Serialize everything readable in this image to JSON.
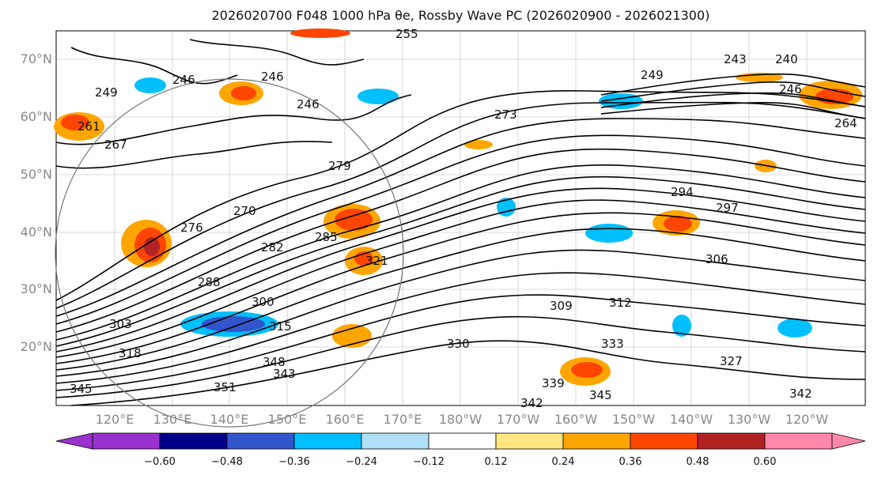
{
  "title": {
    "text": "2026020700 F048 1000 hPa θe, Rossby Wave PC (2026020900 - 2026021300)"
  },
  "map": {
    "lat_ticks": [
      "70°N",
      "60°N",
      "50°N",
      "40°N",
      "30°N",
      "20°N"
    ],
    "lon_ticks": [
      "120°E",
      "130°E",
      "140°E",
      "150°E",
      "160°E",
      "170°E",
      "180°W",
      "170°W",
      "160°W",
      "150°W",
      "140°W",
      "130°W",
      "120°W"
    ],
    "contour_labels": [
      "255",
      "246",
      "249",
      "246",
      "246",
      "240",
      "243",
      "249",
      "246",
      "261",
      "264",
      "267",
      "273",
      "270",
      "276",
      "279",
      "282",
      "285",
      "288",
      "294",
      "297",
      "300",
      "303",
      "306",
      "309",
      "312",
      "315",
      "318",
      "321",
      "327",
      "330",
      "333",
      "339",
      "342",
      "345",
      "345",
      "348",
      "351",
      "342",
      "343"
    ],
    "colors": {
      "coast": "#000000",
      "grid": "#999999",
      "contour": "#000000"
    }
  },
  "colorbar": {
    "tick_labels": [
      "−0.60",
      "−0.48",
      "−0.36",
      "−0.24",
      "−0.12",
      "0.12",
      "0.24",
      "0.36",
      "0.48",
      "0.60"
    ],
    "colors": [
      "#9932cc",
      "#00008b",
      "#3355cc",
      "#00bfff",
      "#b0e0f5",
      "#ffffff",
      "#ffe680",
      "#ffa500",
      "#ff4500",
      "#b22222",
      "#ff88aa"
    ]
  }
}
